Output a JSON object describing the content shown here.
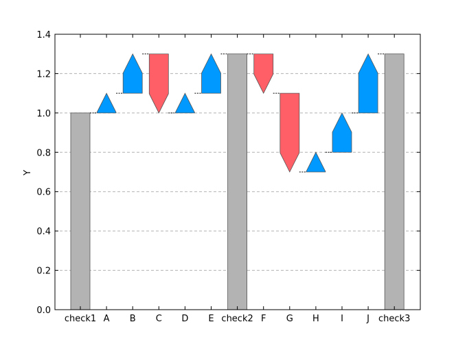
{
  "chart_data": {
    "type": "waterfall",
    "ylabel": "Y",
    "xlabel": "",
    "ylim": [
      0,
      1.4
    ],
    "yticks": [
      "0.0",
      "0.2",
      "0.4",
      "0.6",
      "0.8",
      "1.0",
      "1.2",
      "1.4"
    ],
    "grid": "horizontal-dashed",
    "legend": "none",
    "categories": [
      "check1",
      "A",
      "B",
      "C",
      "D",
      "E",
      "check2",
      "F",
      "G",
      "H",
      "I",
      "J",
      "check3"
    ],
    "steps": [
      {
        "label": "check1",
        "kind": "total",
        "start": 0,
        "end": 1.0
      },
      {
        "label": "A",
        "kind": "increase",
        "start": 1.0,
        "end": 1.1
      },
      {
        "label": "B",
        "kind": "increase",
        "start": 1.1,
        "end": 1.3
      },
      {
        "label": "C",
        "kind": "decrease",
        "start": 1.3,
        "end": 1.0
      },
      {
        "label": "D",
        "kind": "increase",
        "start": 1.0,
        "end": 1.1
      },
      {
        "label": "E",
        "kind": "increase",
        "start": 1.1,
        "end": 1.3
      },
      {
        "label": "check2",
        "kind": "total",
        "start": 0,
        "end": 1.3
      },
      {
        "label": "F",
        "kind": "decrease",
        "start": 1.3,
        "end": 1.1
      },
      {
        "label": "G",
        "kind": "decrease",
        "start": 1.1,
        "end": 0.7
      },
      {
        "label": "H",
        "kind": "increase",
        "start": 0.7,
        "end": 0.8
      },
      {
        "label": "I",
        "kind": "increase",
        "start": 0.8,
        "end": 1.0
      },
      {
        "label": "J",
        "kind": "increase",
        "start": 1.0,
        "end": 1.3
      },
      {
        "label": "check3",
        "kind": "total",
        "start": 0,
        "end": 1.3
      }
    ],
    "colors": {
      "increase": "#0099ff",
      "decrease": "#ff5f66",
      "total": "#b3b3b3",
      "grid": "#b0b0b0",
      "connector": "#000000"
    }
  }
}
